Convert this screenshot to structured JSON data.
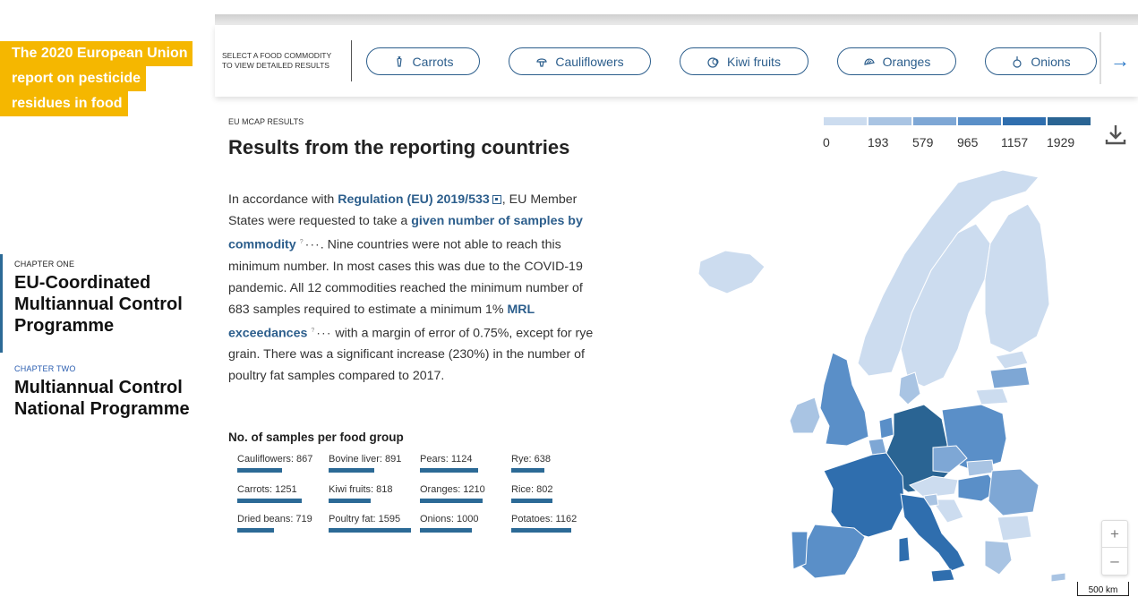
{
  "report": {
    "title_lines": [
      "The 2020 European Union",
      "report on pesticide",
      "residues in food"
    ]
  },
  "chapters": [
    {
      "kicker": "CHAPTER ONE",
      "name_lines": [
        "EU-Coordinated",
        "Multiannual Control",
        "Programme"
      ]
    },
    {
      "kicker": "CHAPTER TWO",
      "name_lines": [
        "Multiannual Control",
        "National Programme"
      ]
    }
  ],
  "topbar": {
    "prompt_lines": [
      "SELECT A FOOD COMMODITY",
      "TO VIEW DETAILED RESULTS"
    ],
    "commodities": [
      {
        "label": "Carrots",
        "icon": "carrot-icon"
      },
      {
        "label": "Cauliflowers",
        "icon": "cauliflower-icon"
      },
      {
        "label": "Kiwi fruits",
        "icon": "kiwi-icon"
      },
      {
        "label": "Oranges",
        "icon": "orange-icon"
      },
      {
        "label": "Onions",
        "icon": "onion-icon"
      }
    ],
    "next_icon": "arrow-right-icon"
  },
  "main": {
    "kicker": "EU MCAP RESULTS",
    "heading": "Results from the reporting countries",
    "paragraph": {
      "p1": "In accordance with ",
      "link1": "Regulation (EU) 2019/533",
      "p2": ", EU Member States were requested to take a ",
      "link2": "given number of samples by commodity",
      "p3": ". Nine countries were not able to reach this minimum number. In most cases this was due to the COVID-19 pandemic. All 12 commodities reached the minimum number of 683 samples required to estimate a minimum 1% ",
      "link3": "MRL exceedances",
      "p4": " with a margin of error of 0.75%, except for rye grain. There was a significant increase (230%) in the number of poultry fat samples compared to 2017.",
      "tip_mark": "?",
      "dots": "···"
    },
    "samples_title": "No. of samples per food group",
    "samples": [
      {
        "label": "Cauliflowers: 867",
        "value": 867
      },
      {
        "label": "Bovine liver: 891",
        "value": 891
      },
      {
        "label": "Pears: 1124",
        "value": 1124
      },
      {
        "label": "Rye: 638",
        "value": 638
      },
      {
        "label": "Carrots: 1251",
        "value": 1251
      },
      {
        "label": "Kiwi fruits: 818",
        "value": 818
      },
      {
        "label": "Oranges: 1210",
        "value": 1210
      },
      {
        "label": "Rice: 802",
        "value": 802
      },
      {
        "label": "Dried beans: 719",
        "value": 719
      },
      {
        "label": "Poultry fat: 1595",
        "value": 1595
      },
      {
        "label": "Onions: 1000",
        "value": 1000
      },
      {
        "label": "Potatoes: 1162",
        "value": 1162
      }
    ]
  },
  "legend": {
    "labels": [
      "0",
      "193",
      "579",
      "965",
      "1157",
      "1929"
    ],
    "colors": [
      "#ccdcef",
      "#a9c4e3",
      "#7ea7d5",
      "#5a8fc8",
      "#2f6eae",
      "#2a6493"
    ]
  },
  "map": {
    "zoom_in": "+",
    "zoom_out": "–",
    "scale": "500 km"
  },
  "colors": {
    "accent": "#f5b700",
    "link": "#2c5e8c",
    "bar": "#2c6a96"
  }
}
